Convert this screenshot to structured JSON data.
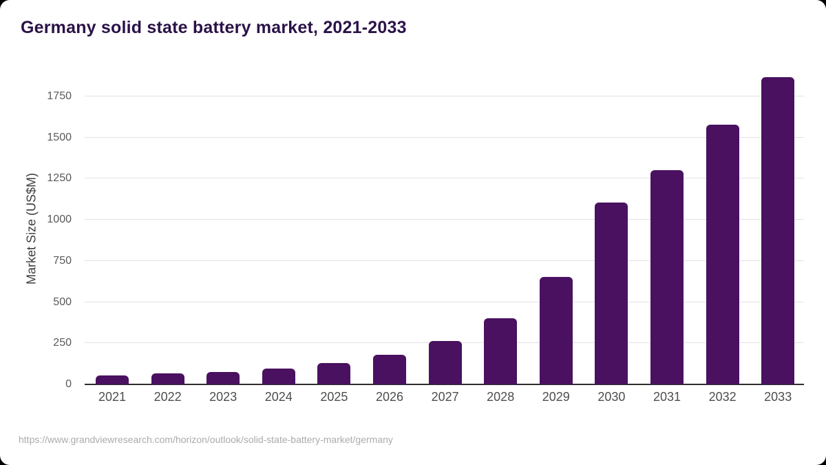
{
  "page": {
    "title": "Germany solid state battery market, 2021-2033",
    "source_url": "https://www.grandviewresearch.com/horizon/outlook/solid-state-battery-market/germany"
  },
  "chart_data": {
    "type": "bar",
    "title": "Germany solid state battery market, 2021-2033",
    "categories": [
      "2021",
      "2022",
      "2023",
      "2024",
      "2025",
      "2026",
      "2027",
      "2028",
      "2029",
      "2030",
      "2031",
      "2032",
      "2033"
    ],
    "values": [
      55,
      65,
      77,
      97,
      130,
      178,
      262,
      403,
      655,
      1105,
      1300,
      1580,
      1865
    ],
    "xlabel": "",
    "ylabel": "Market Size (US$M)",
    "ylim": [
      0,
      1875
    ],
    "yticks": [
      0,
      250,
      500,
      750,
      1000,
      1250,
      1500,
      1750
    ],
    "grid": true,
    "legend": "none",
    "bar_color": "#4a1160"
  },
  "colors": {
    "title": "#2b1248",
    "bar": "#4a1160",
    "gridline": "#e2e2e2",
    "axis_line": "#2e2e2e",
    "tick_label": "#595959",
    "x_label": "#4d4d4d",
    "source": "#ababab",
    "page_bg": "#ffffff"
  }
}
